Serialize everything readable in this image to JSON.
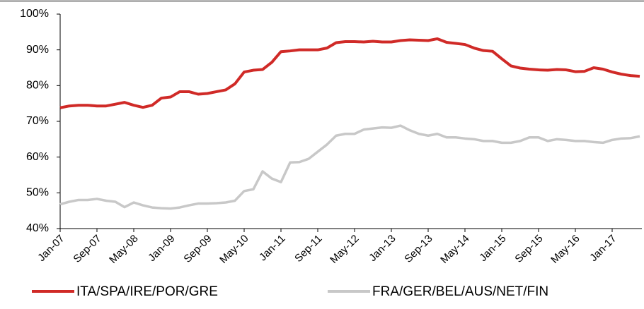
{
  "chart_data": {
    "type": "line",
    "categories": [
      "Jan-07",
      null,
      null,
      null,
      "Sep-07",
      null,
      null,
      null,
      "May-08",
      null,
      null,
      null,
      "Jan-09",
      null,
      null,
      null,
      "Sep-09",
      null,
      null,
      null,
      "May-10",
      null,
      null,
      null,
      "Jan-11",
      null,
      null,
      null,
      "Sep-11",
      null,
      null,
      null,
      "May-12",
      null,
      null,
      null,
      "Jan-13",
      null,
      null,
      null,
      "Sep-13",
      null,
      null,
      null,
      "May-14",
      null,
      null,
      null,
      "Jan-15",
      null,
      null,
      null,
      "Sep-15",
      null,
      null,
      null,
      "May-16",
      null,
      null,
      null,
      "Jan-17",
      null,
      null,
      null
    ],
    "series": [
      {
        "name": "ITA/SPA/IRE/POR/GRE",
        "color": "#d02a27",
        "values": [
          73.8,
          74.3,
          74.5,
          74.5,
          74.3,
          74.3,
          74.8,
          75.3,
          74.5,
          73.9,
          74.5,
          76.5,
          76.8,
          78.3,
          78.3,
          77.6,
          77.8,
          78.3,
          78.8,
          80.5,
          83.8,
          84.3,
          84.5,
          86.5,
          89.5,
          89.7,
          90,
          90,
          90,
          90.5,
          92,
          92.3,
          92.3,
          92.2,
          92.4,
          92.2,
          92.2,
          92.6,
          92.8,
          92.7,
          92.6,
          93.1,
          92.1,
          91.8,
          91.5,
          90.5,
          89.8,
          89.6,
          87.5,
          85.5,
          84.9,
          84.6,
          84.4,
          84.3,
          84.5,
          84.4,
          83.9,
          84,
          85,
          84.6,
          83.8,
          83.2,
          82.8,
          82.6
        ]
      },
      {
        "name": "FRA/GER/BEL/AUS/NET/FIN",
        "color": "#c8c8c8",
        "values": [
          46.8,
          47.5,
          48,
          48,
          48.3,
          47.8,
          47.5,
          46,
          47.3,
          46.5,
          45.9,
          45.7,
          45.6,
          45.9,
          46.5,
          47,
          47,
          47.1,
          47.3,
          47.8,
          50.5,
          51,
          56,
          54,
          53,
          58.5,
          58.6,
          59.5,
          61.5,
          63.5,
          66,
          66.5,
          66.5,
          67.7,
          68,
          68.3,
          68.2,
          68.8,
          67.5,
          66.5,
          66,
          66.5,
          65.5,
          65.5,
          65.2,
          65,
          64.5,
          64.5,
          64,
          64,
          64.5,
          65.5,
          65.5,
          64.5,
          65,
          64.8,
          64.5,
          64.5,
          64.2,
          64,
          64.8,
          65.2,
          65.3,
          65.8
        ]
      }
    ],
    "ylim": [
      40,
      100
    ],
    "yticks": [
      {
        "value": 40,
        "label": "40%"
      },
      {
        "value": 50,
        "label": "50%"
      },
      {
        "value": 60,
        "label": "60%"
      },
      {
        "value": 70,
        "label": "70%"
      },
      {
        "value": 80,
        "label": "80%"
      },
      {
        "value": 90,
        "label": "90%"
      },
      {
        "value": 100,
        "label": "100%"
      }
    ],
    "grid": false
  }
}
